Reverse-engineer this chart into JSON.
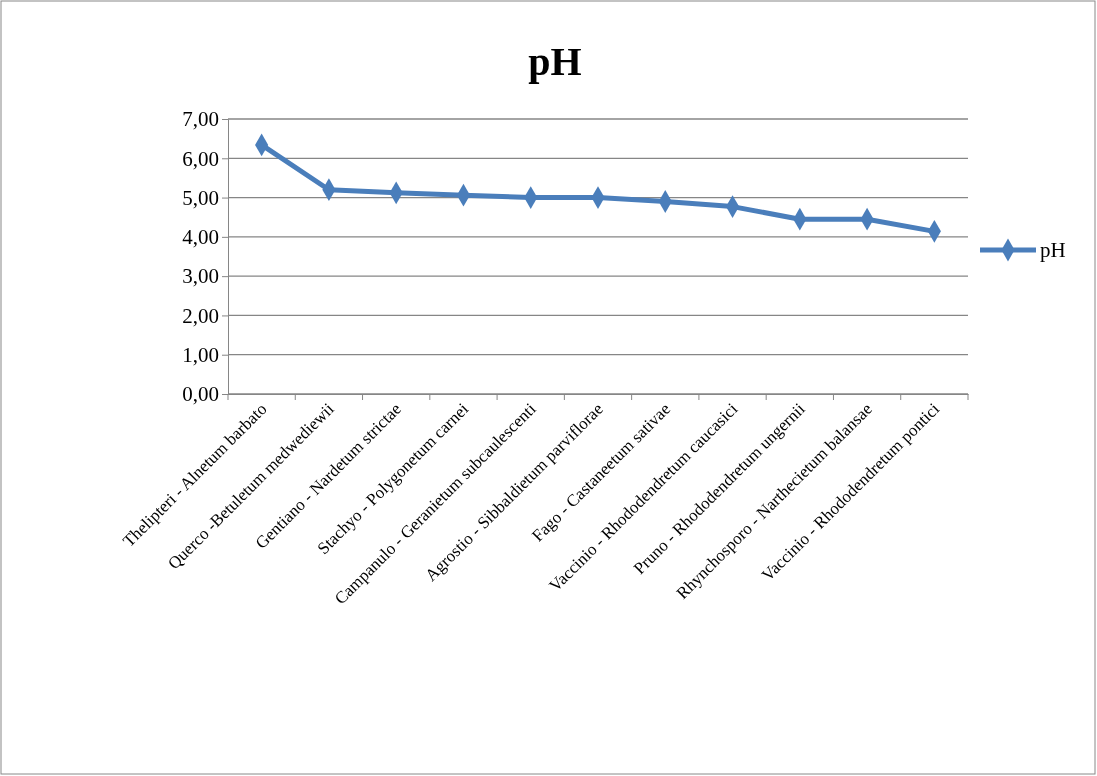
{
  "chart_data": {
    "type": "line",
    "title": "pH",
    "categories": [
      "Thelipteri - Alnetum barbato",
      "Querco -Betuletum medwediewii",
      "Gentiano - Nardetum strictae",
      "Stachyo - Polygonetum carnei",
      "Campanulo - Geranietum subcaulescenti",
      "Agrostio - Sibbaldietum parviflorae",
      "Fago - Castaneetum sativae",
      "Vaccinio - Rhododendretum caucasici",
      "Pruno - Rhododendretum ungernii",
      "Rhynchosporo - Narthecietum balansae",
      "Vaccinio - Rhododendretum pontici"
    ],
    "series": [
      {
        "name": "pH",
        "color": "#4a7ebb",
        "values": [
          6.34,
          5.2,
          5.12,
          5.06,
          5.0,
          5.0,
          4.9,
          4.77,
          4.45,
          4.45,
          4.14
        ]
      }
    ],
    "ylim": [
      0,
      7
    ],
    "yticks": [
      {
        "value": 0,
        "label": "0,00"
      },
      {
        "value": 1,
        "label": "1,00"
      },
      {
        "value": 2,
        "label": "2,00"
      },
      {
        "value": 3,
        "label": "3,00"
      },
      {
        "value": 4,
        "label": "4,00"
      },
      {
        "value": 5,
        "label": "5,00"
      },
      {
        "value": 6,
        "label": "6,00"
      },
      {
        "value": 7,
        "label": "7,00"
      }
    ],
    "grid": "y",
    "legend": "right",
    "marker": "diamond",
    "line_style": "solid"
  }
}
